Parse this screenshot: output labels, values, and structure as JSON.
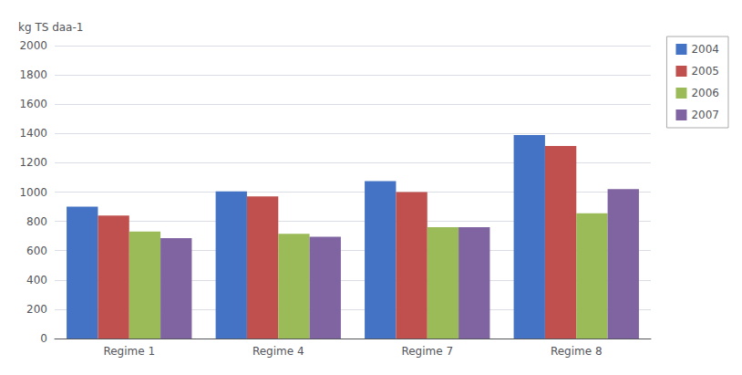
{
  "chart_data": {
    "type": "bar",
    "ylabel": "kg TS daa-1",
    "categories": [
      "Regime 1",
      "Regime 4",
      "Regime 7",
      "Regime 8"
    ],
    "series": [
      {
        "name": "2004",
        "color": "#4472C4",
        "values": [
          900,
          1005,
          1075,
          1390
        ]
      },
      {
        "name": "2005",
        "color": "#C0504D",
        "values": [
          840,
          970,
          1000,
          1315
        ]
      },
      {
        "name": "2006",
        "color": "#9BBB59",
        "values": [
          730,
          715,
          760,
          855
        ]
      },
      {
        "name": "2007",
        "color": "#8064A2",
        "values": [
          685,
          695,
          760,
          1020
        ]
      }
    ],
    "ylim": [
      0,
      2000
    ],
    "yticks": [
      0,
      200,
      400,
      600,
      800,
      1000,
      1200,
      1400,
      1600,
      1800,
      2000
    ],
    "grid": true,
    "legend": "upper right"
  }
}
